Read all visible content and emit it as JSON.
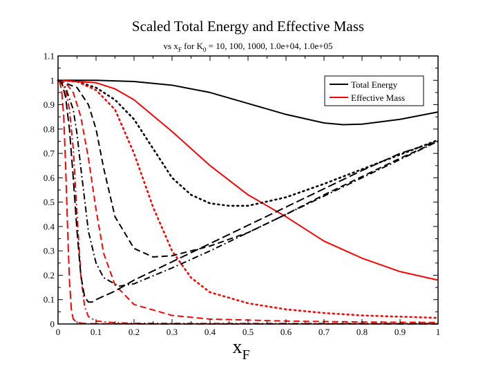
{
  "chart_data": {
    "type": "line",
    "title": "Scaled Total Energy and Effective Mass",
    "subtitle": {
      "prefix": "vs x",
      "prefix_sub": "F",
      "middle": " for K",
      "middle_sub": "0",
      "suffix": " =  10, 100, 1000, 1.0e+04, 1.0e+05"
    },
    "xlabel": "x",
    "xlabel_sub": "F",
    "ylabel": "",
    "xlim": [
      0,
      1
    ],
    "ylim": [
      0,
      1.1
    ],
    "x_ticks": [
      "0",
      "0.1",
      "0.2",
      "0.3",
      "0.4",
      "0.5",
      "0.6",
      "0.7",
      "0.8",
      "0.9",
      "1"
    ],
    "y_ticks": [
      "0",
      "0.1",
      "0.2",
      "0.3",
      "0.4",
      "0.5",
      "0.6",
      "0.7",
      "0.8",
      "0.9",
      "1",
      "1.1"
    ],
    "grid": false,
    "legend": {
      "position": "top-right",
      "entries": [
        {
          "label": "Total Energy",
          "color": "#000000"
        },
        {
          "label": "Effective Mass",
          "color": "#ff0000"
        }
      ]
    },
    "series": [
      {
        "name": "Total Energy, K0 = 10",
        "color": "#000000",
        "dash": "solid",
        "x": [
          0.0,
          0.1,
          0.2,
          0.3,
          0.4,
          0.5,
          0.6,
          0.7,
          0.75,
          0.8,
          0.9,
          1.0
        ],
        "y": [
          1.0,
          1.0,
          0.995,
          0.98,
          0.95,
          0.905,
          0.86,
          0.825,
          0.818,
          0.82,
          0.84,
          0.87
        ]
      },
      {
        "name": "Effective Mass, K0 = 10",
        "color": "#ff0000",
        "dash": "solid",
        "x": [
          0.0,
          0.1,
          0.15,
          0.2,
          0.3,
          0.4,
          0.5,
          0.6,
          0.7,
          0.8,
          0.9,
          1.0
        ],
        "y": [
          1.0,
          0.99,
          0.965,
          0.92,
          0.79,
          0.65,
          0.53,
          0.44,
          0.34,
          0.27,
          0.215,
          0.18
        ]
      },
      {
        "name": "Total Energy, K0 = 100",
        "color": "#000000",
        "dash": "dotted",
        "x": [
          0.0,
          0.05,
          0.1,
          0.15,
          0.2,
          0.25,
          0.3,
          0.35,
          0.4,
          0.45,
          0.5,
          0.6,
          0.7,
          0.8,
          0.9,
          1.0
        ],
        "y": [
          1.0,
          0.995,
          0.97,
          0.92,
          0.84,
          0.72,
          0.6,
          0.53,
          0.495,
          0.485,
          0.485,
          0.52,
          0.575,
          0.635,
          0.695,
          0.755
        ]
      },
      {
        "name": "Effective Mass, K0 = 100",
        "color": "#ff0000",
        "dash": "dotted",
        "x": [
          0.0,
          0.05,
          0.1,
          0.15,
          0.2,
          0.25,
          0.3,
          0.35,
          0.4,
          0.5,
          0.6,
          0.7,
          0.8,
          0.9,
          1.0
        ],
        "y": [
          1.0,
          0.995,
          0.96,
          0.88,
          0.7,
          0.48,
          0.3,
          0.19,
          0.13,
          0.085,
          0.06,
          0.045,
          0.035,
          0.03,
          0.025
        ]
      },
      {
        "name": "Total Energy, K0 = 1000",
        "color": "#000000",
        "dash": "dashed",
        "x": [
          0.0,
          0.05,
          0.08,
          0.1,
          0.12,
          0.15,
          0.2,
          0.25,
          0.3,
          0.4,
          0.5,
          0.6,
          0.7,
          0.8,
          0.9,
          1.0
        ],
        "y": [
          1.0,
          0.97,
          0.9,
          0.8,
          0.64,
          0.44,
          0.31,
          0.275,
          0.28,
          0.32,
          0.375,
          0.45,
          0.53,
          0.605,
          0.68,
          0.75
        ]
      },
      {
        "name": "Effective Mass, K0 = 1000",
        "color": "#ff0000",
        "dash": "dashed",
        "x": [
          0.0,
          0.02,
          0.04,
          0.06,
          0.08,
          0.1,
          0.12,
          0.15,
          0.2,
          0.3,
          0.4,
          0.6,
          0.8,
          1.0
        ],
        "y": [
          1.0,
          0.99,
          0.95,
          0.85,
          0.68,
          0.47,
          0.29,
          0.16,
          0.08,
          0.035,
          0.02,
          0.012,
          0.008,
          0.006
        ]
      },
      {
        "name": "Total Energy, K0 = 1.0e+04",
        "color": "#000000",
        "dash": "dashdot",
        "x": [
          0.0,
          0.02,
          0.04,
          0.05,
          0.06,
          0.08,
          0.1,
          0.12,
          0.16,
          0.2,
          0.3,
          0.4,
          0.5,
          0.6,
          0.7,
          0.8,
          0.9,
          1.0
        ],
        "y": [
          1.0,
          0.97,
          0.88,
          0.78,
          0.64,
          0.38,
          0.25,
          0.19,
          0.155,
          0.165,
          0.23,
          0.3,
          0.375,
          0.45,
          0.525,
          0.6,
          0.675,
          0.75
        ]
      },
      {
        "name": "Effective Mass, K0 = 1.0e+04",
        "color": "#ff0000",
        "dash": "dashdot",
        "x": [
          0.0,
          0.01,
          0.02,
          0.03,
          0.04,
          0.05,
          0.06,
          0.07,
          0.08,
          0.1,
          0.15,
          0.2,
          0.4,
          0.7,
          1.0
        ],
        "y": [
          1.0,
          0.99,
          0.96,
          0.88,
          0.72,
          0.45,
          0.2,
          0.07,
          0.03,
          0.012,
          0.005,
          0.003,
          0.002,
          0.002,
          0.002
        ]
      },
      {
        "name": "Total Energy, K0 = 1.0e+05",
        "color": "#000000",
        "dash": "longdash",
        "x": [
          0.0,
          0.01,
          0.02,
          0.03,
          0.04,
          0.05,
          0.06,
          0.07,
          0.08,
          0.09,
          0.1,
          0.15,
          0.2,
          0.3,
          0.4,
          0.5,
          0.6,
          0.7,
          0.8,
          0.9,
          1.0
        ],
        "y": [
          1.0,
          0.99,
          0.93,
          0.8,
          0.6,
          0.38,
          0.2,
          0.11,
          0.09,
          0.09,
          0.1,
          0.135,
          0.18,
          0.255,
          0.33,
          0.405,
          0.48,
          0.555,
          0.63,
          0.7,
          0.75
        ]
      },
      {
        "name": "Effective Mass, K0 = 1.0e+05",
        "color": "#ff0000",
        "dash": "longdash",
        "x": [
          0.0,
          0.005,
          0.01,
          0.015,
          0.02,
          0.025,
          0.03,
          0.035,
          0.04,
          0.05,
          0.07,
          0.1,
          0.3,
          0.6,
          1.0
        ],
        "y": [
          1.0,
          0.99,
          0.95,
          0.85,
          0.65,
          0.4,
          0.18,
          0.06,
          0.02,
          0.006,
          0.002,
          0.001,
          0.0,
          0.0,
          0.0
        ]
      }
    ]
  }
}
